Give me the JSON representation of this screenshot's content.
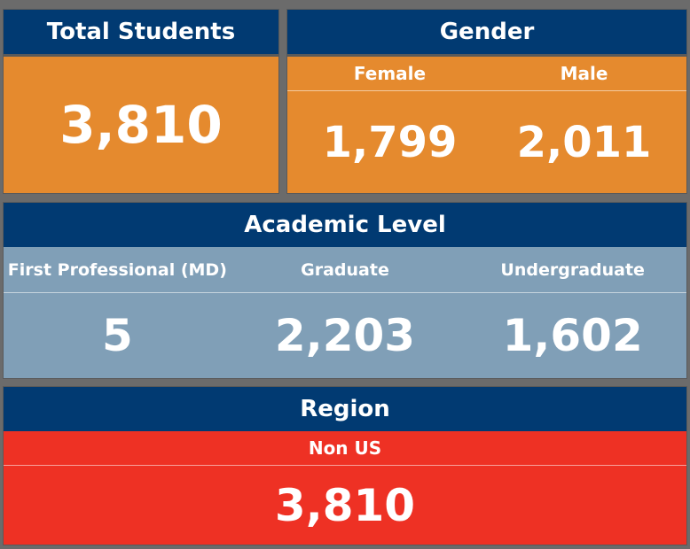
{
  "colors": {
    "header": "#013a72",
    "orange": "#e58a2e",
    "steel": "#809fb7",
    "red": "#ee3124",
    "background": "#6b6b6b"
  },
  "total_students": {
    "title": "Total Students",
    "value": "3,810"
  },
  "gender": {
    "title": "Gender",
    "columns": [
      {
        "label": "Female",
        "value": "1,799"
      },
      {
        "label": "Male",
        "value": "2,011"
      }
    ]
  },
  "academic_level": {
    "title": "Academic Level",
    "columns": [
      {
        "label": "First Professional (MD)",
        "value": "5"
      },
      {
        "label": "Graduate",
        "value": "2,203"
      },
      {
        "label": "Undergraduate",
        "value": "1,602"
      }
    ]
  },
  "region": {
    "title": "Region",
    "columns": [
      {
        "label": "Non US",
        "value": "3,810"
      }
    ]
  }
}
